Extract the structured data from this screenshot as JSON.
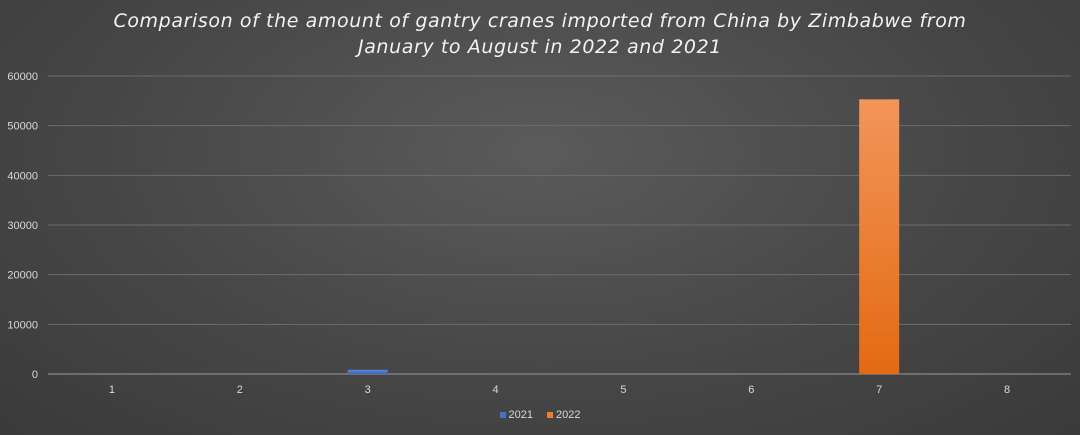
{
  "chart_data": {
    "type": "bar",
    "title": "Comparison of the amount of gantry cranes imported from China by Zimbabwe from January to August in 2022 and 2021",
    "categories": [
      "1",
      "2",
      "3",
      "4",
      "5",
      "6",
      "7",
      "8"
    ],
    "series": [
      {
        "name": "2021",
        "color": "#4472c4",
        "values": [
          0,
          0,
          850,
          0,
          0,
          0,
          0,
          0
        ]
      },
      {
        "name": "2022",
        "color": "#ed7d31",
        "values": [
          0,
          0,
          0,
          0,
          0,
          0,
          55300,
          0
        ]
      }
    ],
    "ylim": [
      0,
      60000
    ],
    "yticks": [
      0,
      10000,
      20000,
      30000,
      40000,
      50000,
      60000
    ],
    "grid": true,
    "legend": "bottom",
    "xlabel": "",
    "ylabel": ""
  }
}
